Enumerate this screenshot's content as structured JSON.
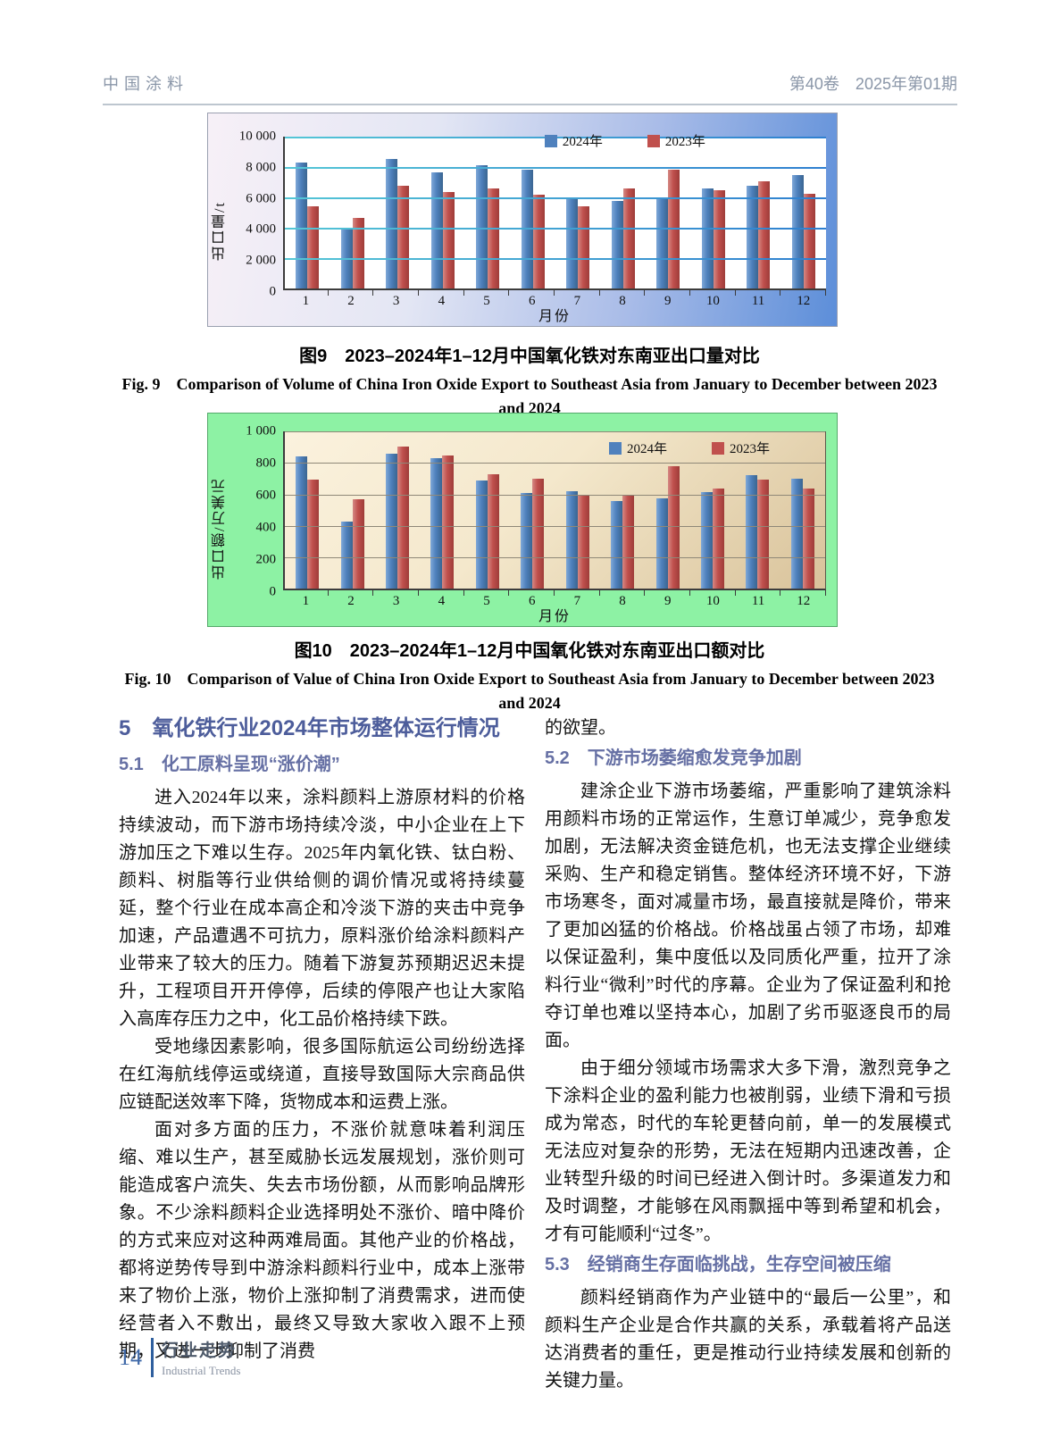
{
  "header": {
    "journal_zh": "中国涂料",
    "issue": "第40卷　2025年第01期"
  },
  "chart_data": [
    {
      "type": "bar",
      "caption_zh": "图9　2023–2024年1–12月中国氧化铁对东南亚出口量对比",
      "caption_en_line1": "Fig. 9　Comparison of Volume of China Iron Oxide Export to Southeast Asia from January to December between 2023",
      "caption_en_line2": "and 2024",
      "ylabel": "出口量/t",
      "xlabel": "月份",
      "ylim": [
        0,
        10000
      ],
      "ytick_labels": [
        "10 000",
        "8 000",
        "6 000",
        "4 000",
        "2 000",
        "0"
      ],
      "grid": true,
      "legend_position": "top-center",
      "categories": [
        "1",
        "2",
        "3",
        "4",
        "5",
        "6",
        "7",
        "8",
        "9",
        "10",
        "11",
        "12"
      ],
      "series": [
        {
          "name": "2024年",
          "color": "#4f81bd",
          "values": [
            8300,
            3980,
            8550,
            7650,
            8100,
            7800,
            5950,
            5750,
            5950,
            6600,
            6800,
            7450
          ]
        },
        {
          "name": "2023年",
          "color": "#c0504d",
          "values": [
            5450,
            4650,
            6800,
            6350,
            6600,
            6200,
            5450,
            6600,
            7800,
            6450,
            7050,
            6250
          ]
        }
      ]
    },
    {
      "type": "bar",
      "caption_zh": "图10　2023–2024年1–12月中国氧化铁对东南亚出口额对比",
      "caption_en_line1": "Fig. 10　Comparison of Value of China Iron Oxide Export to Southeast Asia from January to December between 2023",
      "caption_en_line2": "and 2024",
      "ylabel": "出口额/万美元",
      "xlabel": "月份",
      "ylim": [
        0,
        1000
      ],
      "ytick_labels": [
        "1 000",
        "800",
        "600",
        "400",
        "200",
        "0"
      ],
      "grid": true,
      "legend_position": "top-right",
      "categories": [
        "1",
        "2",
        "3",
        "4",
        "5",
        "6",
        "7",
        "8",
        "9",
        "10",
        "11",
        "12"
      ],
      "series": [
        {
          "name": "2024年",
          "color": "#4f81bd",
          "values": [
            840,
            425,
            860,
            830,
            690,
            610,
            620,
            555,
            575,
            615,
            725,
            700
          ]
        },
        {
          "name": "2023年",
          "color": "#c0504d",
          "values": [
            695,
            570,
            905,
            845,
            730,
            700,
            600,
            600,
            780,
            640,
            695,
            640
          ]
        }
      ]
    }
  ],
  "article": {
    "section5_title": "5　氧化铁行业2024年市场整体运行情况",
    "s51_title": "5.1　化工原料呈现“涨价潮”",
    "s51_p1": "进入2024年以来，涂料颜料上游原材料的价格持续波动，而下游市场持续冷淡，中小企业在上下游加压之下难以生存。2025年内氧化铁、钛白粉、颜料、树脂等行业供给侧的调价情况或将持续蔓延，整个行业在成本高企和冷淡下游的夹击中竞争加速，产品遭遇不可抗力，原料涨价给涂料颜料产业带来了较大的压力。随着下游复苏预期迟迟未提升，工程项目开开停停，后续的停限产也让大家陷入高库存压力之中，化工品价格持续下跌。",
    "s51_p2": "受地缘因素影响，很多国际航运公司纷纷选择在红海航线停运或绕道，直接导致国际大宗商品供应链配送效率下降，货物成本和运费上涨。",
    "s51_p3": "面对多方面的压力，不涨价就意味着利润压缩、难以生产，甚至威胁长远发展规划，涨价则可能造成客户流失、失去市场份额，从而影响品牌形象。不少涂料颜料企业选择明处不涨价、暗中降价的方式来应对这种两难局面。其他产业的价格战，都将逆势传导到中游涂料颜料行业中，成本上涨带来了物价上涨，物价上涨抑制了消费需求，进而使经营者入不敷出，最终又导致大家收入跟不上预期，又进一步抑制了消费",
    "s51_p3_cont": "的欲望。",
    "s52_title": "5.2　下游市场萎缩愈发竞争加剧",
    "s52_p1": "建涂企业下游市场萎缩，严重影响了建筑涂料用颜料市场的正常运作，生意订单减少，竞争愈发加剧，无法解决资金链危机，也无法支撑企业继续采购、生产和稳定销售。整体经济环境不好，下游市场寒冬，面对减量市场，最直接就是降价，带来了更加凶猛的价格战。价格战虽占领了市场，却难以保证盈利，集中度低以及同质化严重，拉开了涂料行业“微利”时代的序幕。企业为了保证盈利和抢夺订单也难以坚持本心，加剧了劣币驱逐良币的局面。",
    "s52_p2": "由于细分领域市场需求大多下滑，激烈竞争之下涂料企业的盈利能力也被削弱，业绩下滑和亏损成为常态，时代的车轮更替向前，单一的发展模式无法应对复杂的形势，无法在短期内迅速改善，企业转型升级的时间已经进入倒计时。多渠道发力和及时调整，才能够在风雨飘摇中等到希望和机会，才有可能顺利“过冬”。",
    "s53_title": "5.3　经销商生存面临挑战，生存空间被压缩",
    "s53_p1": "颜料经销商作为产业链中的“最后一公里”，和颜料生产企业是合作共赢的关系，承载着将产品送达消费者的重任，更是推动行业持续发展和创新的关键力量。"
  },
  "footer": {
    "page_number": "14",
    "column_zh": "行业走势",
    "column_en": "Industrial Trends"
  }
}
